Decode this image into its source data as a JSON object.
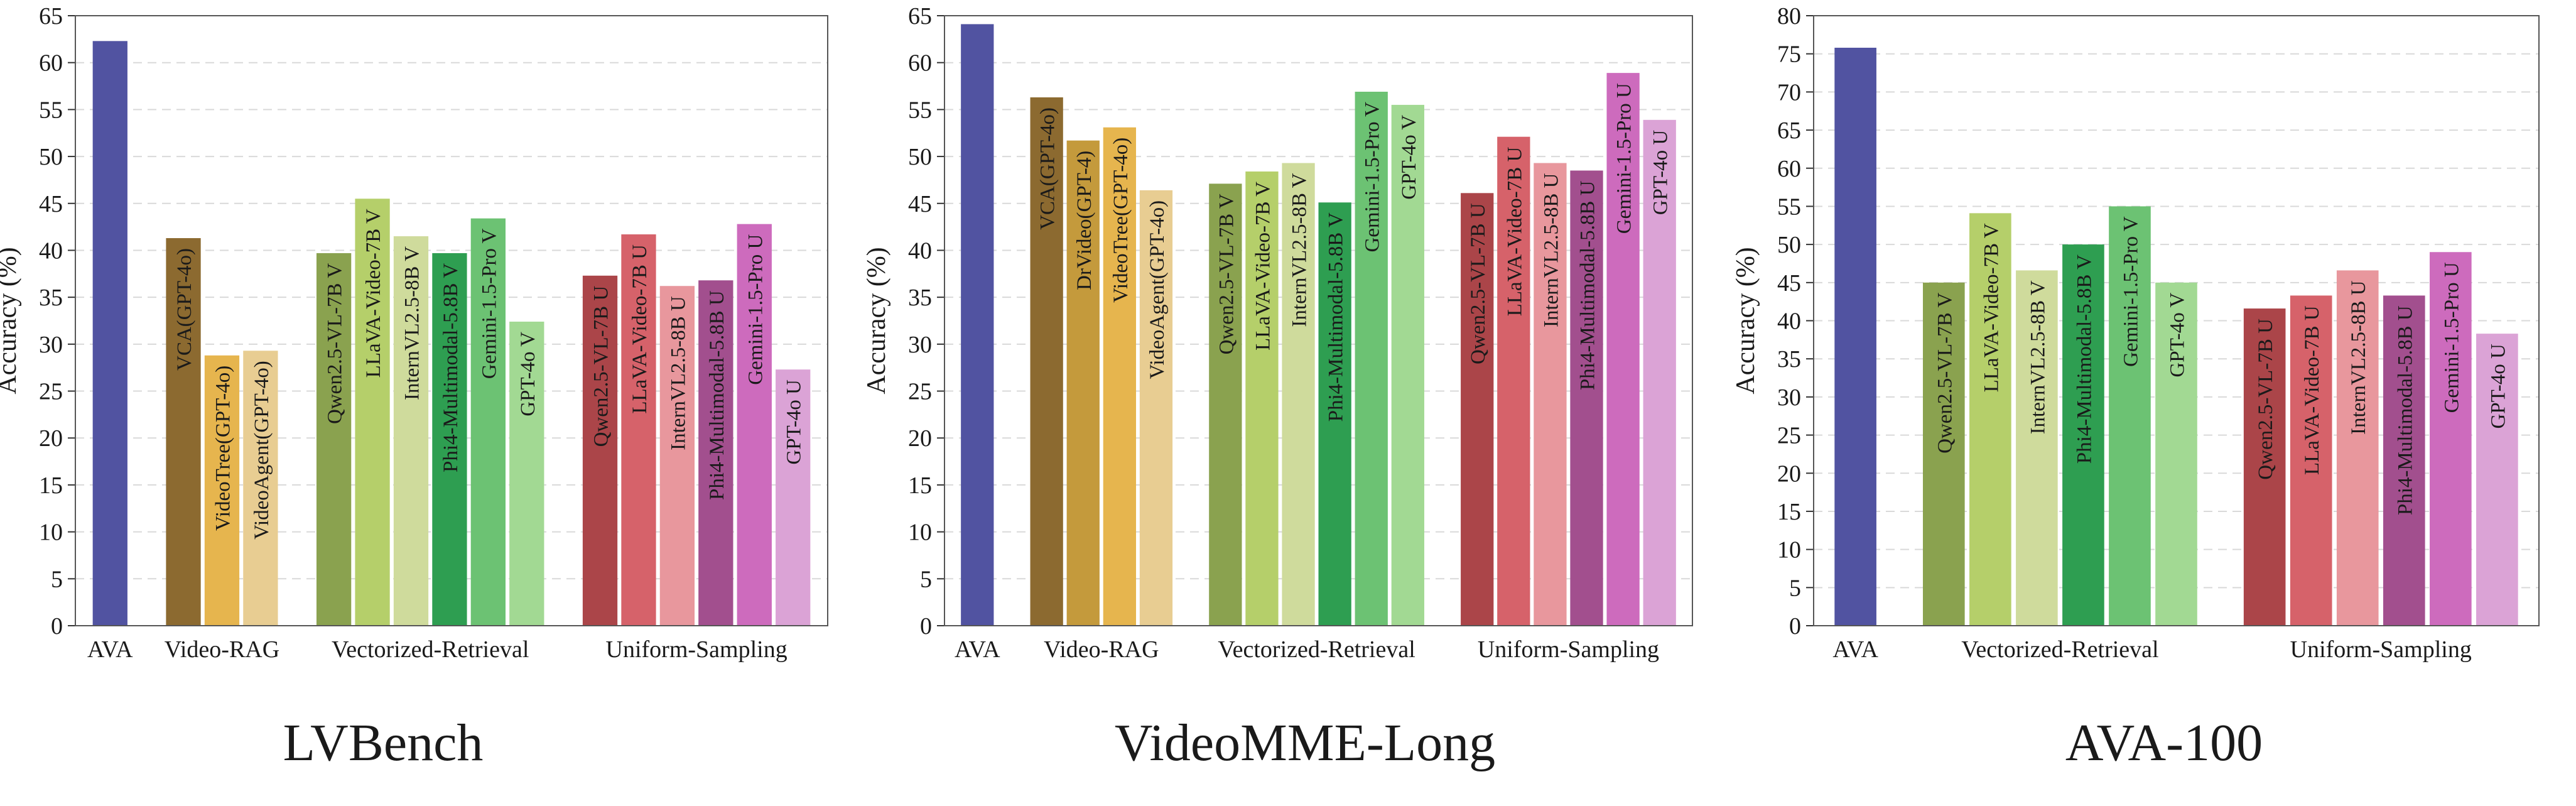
{
  "chart_data": [
    {
      "type": "bar",
      "title": "LVBench",
      "ylabel": "Accuracy (%)",
      "ylim": [
        0,
        65
      ],
      "ytick_step": 5,
      "grid": "dashed horizontal",
      "groups": [
        {
          "name": "AVA",
          "bars": [
            {
              "label": "",
              "value": 62.3,
              "color": "#5153a1"
            }
          ]
        },
        {
          "name": "Video-RAG",
          "bars": [
            {
              "label": "VCA(GPT-4o)",
              "value": 41.3,
              "color": "#8c6a30"
            },
            {
              "label": "VideoTree(GPT-4o)",
              "value": 28.8,
              "color": "#e6b54e"
            },
            {
              "label": "VideoAgent(GPT-4o)",
              "value": 29.3,
              "color": "#e8cd92"
            }
          ]
        },
        {
          "name": "Vectorized-Retrieval",
          "bars": [
            {
              "label": "Qwen2.5-VL-7B V",
              "value": 39.7,
              "color": "#8aa24f"
            },
            {
              "label": "LLaVA-Video-7B V",
              "value": 45.5,
              "color": "#b5cf6a"
            },
            {
              "label": "InternVL2.5-8B V",
              "value": 41.5,
              "color": "#cfdb9c"
            },
            {
              "label": "Phi4-Multimodal-5.8B V",
              "value": 39.7,
              "color": "#2e9e51"
            },
            {
              "label": "Gemini-1.5-Pro V",
              "value": 43.4,
              "color": "#6cc273"
            },
            {
              "label": "GPT-4o V",
              "value": 32.4,
              "color": "#a2d993"
            }
          ]
        },
        {
          "name": "Uniform-Sampling",
          "bars": [
            {
              "label": "Qwen2.5-VL-7B U",
              "value": 37.3,
              "color": "#ab4549"
            },
            {
              "label": "LLaVA-Video-7B U",
              "value": 41.7,
              "color": "#d6626a"
            },
            {
              "label": "InternVL2.5-8B U",
              "value": 36.2,
              "color": "#e8979d"
            },
            {
              "label": "Phi4-Multimodal-5.8B U",
              "value": 36.8,
              "color": "#a24f8e"
            },
            {
              "label": "Gemini-1.5-Pro U",
              "value": 42.8,
              "color": "#cd6bbd"
            },
            {
              "label": "GPT-4o U",
              "value": 27.3,
              "color": "#dba3d6"
            }
          ]
        }
      ]
    },
    {
      "type": "bar",
      "title": "VideoMME-Long",
      "ylabel": "Accuracy (%)",
      "ylim": [
        0,
        65
      ],
      "ytick_step": 5,
      "grid": "dashed horizontal",
      "groups": [
        {
          "name": "AVA",
          "bars": [
            {
              "label": "",
              "value": 64.1,
              "color": "#5153a1"
            }
          ]
        },
        {
          "name": "Video-RAG",
          "bars": [
            {
              "label": "VCA(GPT-4o)",
              "value": 56.3,
              "color": "#8c6a30"
            },
            {
              "label": "DrVideo(GPT-4)",
              "value": 51.7,
              "color": "#c49a3c"
            },
            {
              "label": "VideoTree(GPT-4o)",
              "value": 53.1,
              "color": "#e6b54e"
            },
            {
              "label": "VideoAgent(GPT-4o)",
              "value": 46.4,
              "color": "#e8cd92"
            }
          ]
        },
        {
          "name": "Vectorized-Retrieval",
          "bars": [
            {
              "label": "Qwen2.5-VL-7B V",
              "value": 47.1,
              "color": "#8aa24f"
            },
            {
              "label": "LLaVA-Video-7B V",
              "value": 48.4,
              "color": "#b5cf6a"
            },
            {
              "label": "InternVL2.5-8B V",
              "value": 49.3,
              "color": "#cfdb9c"
            },
            {
              "label": "Phi4-Multimodal-5.8B V",
              "value": 45.1,
              "color": "#2e9e51"
            },
            {
              "label": "Gemini-1.5-Pro V",
              "value": 56.9,
              "color": "#6cc273"
            },
            {
              "label": "GPT-4o V",
              "value": 55.5,
              "color": "#a2d993"
            }
          ]
        },
        {
          "name": "Uniform-Sampling",
          "bars": [
            {
              "label": "Qwen2.5-VL-7B U",
              "value": 46.1,
              "color": "#ab4549"
            },
            {
              "label": "LLaVA-Video-7B U",
              "value": 52.1,
              "color": "#d6626a"
            },
            {
              "label": "InternVL2.5-8B U",
              "value": 49.3,
              "color": "#e8979d"
            },
            {
              "label": "Phi4-Multimodal-5.8B U",
              "value": 48.5,
              "color": "#a24f8e"
            },
            {
              "label": "Gemini-1.5-Pro U",
              "value": 58.9,
              "color": "#cd6bbd"
            },
            {
              "label": "GPT-4o U",
              "value": 53.9,
              "color": "#dba3d6"
            }
          ]
        }
      ]
    },
    {
      "type": "bar",
      "title": "AVA-100",
      "ylabel": "Accuracy (%)",
      "ylim": [
        0,
        80
      ],
      "ytick_step": 5,
      "grid": "dashed horizontal",
      "groups": [
        {
          "name": "AVA",
          "bars": [
            {
              "label": "",
              "value": 75.8,
              "color": "#5153a1"
            }
          ]
        },
        {
          "name": "Vectorized-Retrieval",
          "bars": [
            {
              "label": "Qwen2.5-VL-7B V",
              "value": 45.0,
              "color": "#8aa24f"
            },
            {
              "label": "LLaVA-Video-7B V",
              "value": 54.1,
              "color": "#b5cf6a"
            },
            {
              "label": "InternVL2.5-8B V",
              "value": 46.6,
              "color": "#cfdb9c"
            },
            {
              "label": "Phi4-Multimodal-5.8B V",
              "value": 50.0,
              "color": "#2e9e51"
            },
            {
              "label": "Gemini-1.5-Pro V",
              "value": 55.0,
              "color": "#6cc273"
            },
            {
              "label": "GPT-4o V",
              "value": 45.0,
              "color": "#a2d993"
            }
          ]
        },
        {
          "name": "Uniform-Sampling",
          "bars": [
            {
              "label": "Qwen2.5-VL-7B U",
              "value": 41.6,
              "color": "#ab4549"
            },
            {
              "label": "LLaVA-Video-7B U",
              "value": 43.3,
              "color": "#d6626a"
            },
            {
              "label": "InternVL2.5-8B U",
              "value": 46.6,
              "color": "#e8979d"
            },
            {
              "label": "Phi4-Multimodal-5.8B U",
              "value": 43.3,
              "color": "#a24f8e"
            },
            {
              "label": "Gemini-1.5-Pro U",
              "value": 49.0,
              "color": "#cd6bbd"
            },
            {
              "label": "GPT-4o U",
              "value": 38.3,
              "color": "#dba3d6"
            }
          ]
        }
      ]
    }
  ]
}
